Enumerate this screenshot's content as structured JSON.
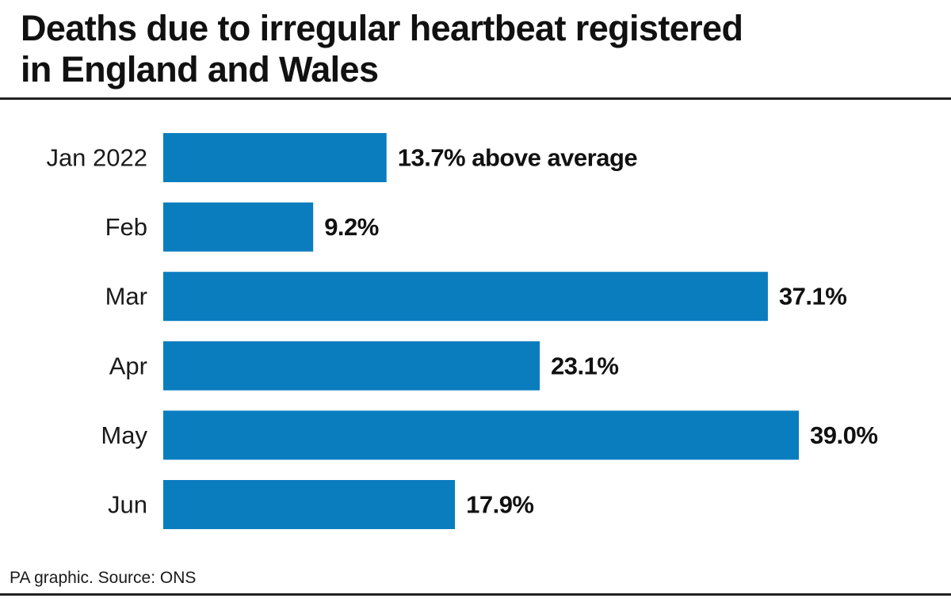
{
  "title_lines": [
    "Deaths due to irregular heartbeat registered",
    "in England and Wales"
  ],
  "source": "PA graphic. Source: ONS",
  "chart_data": {
    "type": "bar",
    "orientation": "horizontal",
    "title": "Deaths due to irregular heartbeat registered in England and Wales",
    "categories": [
      "Jan 2022",
      "Feb",
      "Mar",
      "Apr",
      "May",
      "Jun"
    ],
    "values": [
      13.7,
      9.2,
      37.1,
      23.1,
      39.0,
      17.9
    ],
    "data_labels": [
      "13.7% above average",
      "9.2%",
      "37.1%",
      "23.1%",
      "39.0%",
      "17.9%"
    ],
    "unit": "% above average",
    "xlim": [
      0,
      39.0
    ],
    "grid": false,
    "legend": "none",
    "bar_color": "#0a7dbf"
  }
}
